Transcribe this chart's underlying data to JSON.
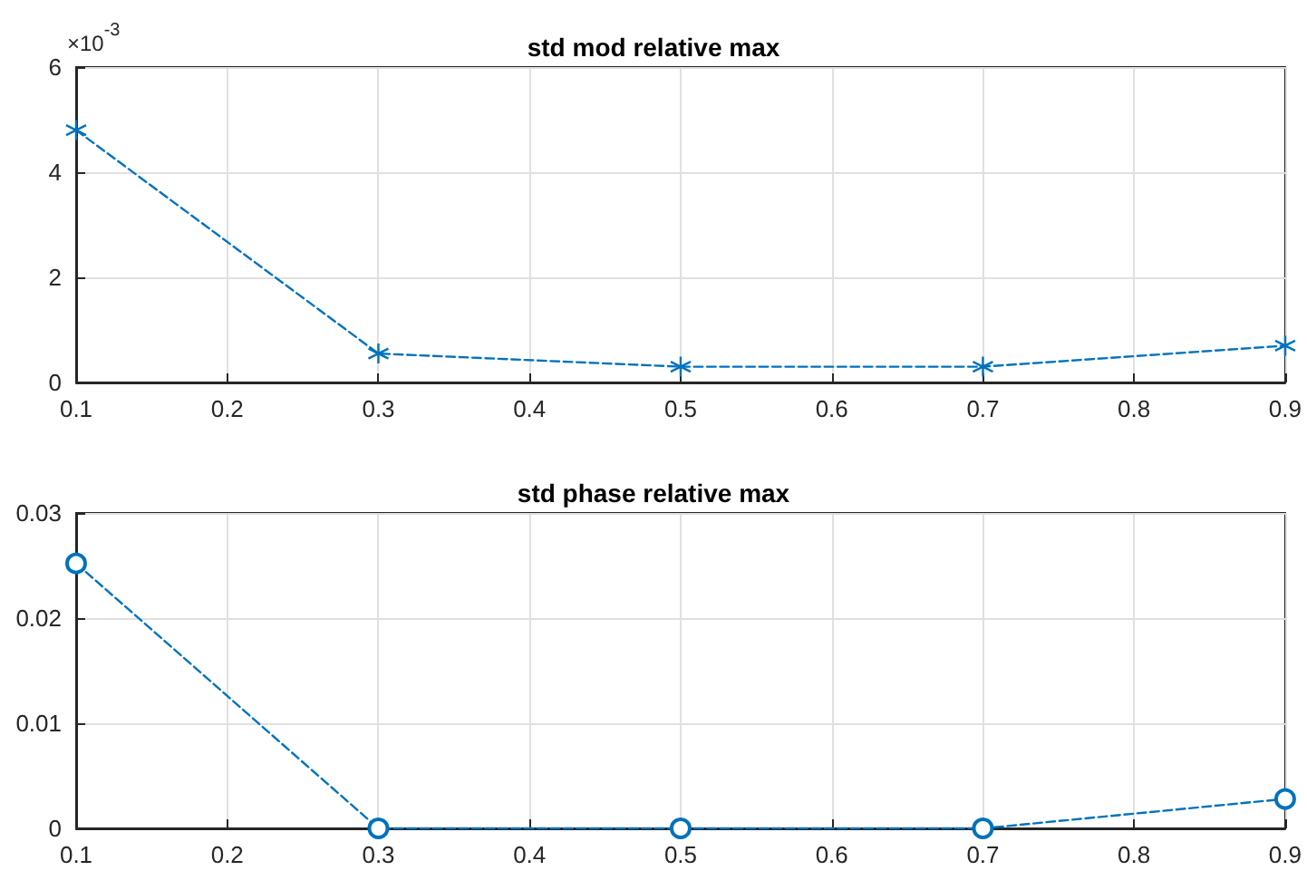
{
  "chart_data": [
    {
      "type": "line",
      "title": "std mod relative max",
      "x": [
        0.1,
        0.3,
        0.5,
        0.7,
        0.9
      ],
      "series": [
        {
          "color": "#0072bd",
          "values": [
            4.8,
            0.55,
            0.3,
            0.3,
            0.7
          ]
        }
      ],
      "xlim": [
        0.1,
        0.9
      ],
      "xticks": [
        0.1,
        0.2,
        0.3,
        0.4,
        0.5,
        0.6,
        0.7,
        0.8,
        0.9
      ],
      "ylim": [
        0,
        6
      ],
      "yticks": [
        0,
        2,
        4,
        6
      ],
      "annotations": [
        "×10$^{-3}$"
      ],
      "grid": true,
      "marker": "cross",
      "line_style": "dashed"
    },
    {
      "type": "line",
      "title": "std phase relative max",
      "x": [
        0.1,
        0.3,
        0.5,
        0.7,
        0.9
      ],
      "series": [
        {
          "color": "#0072bd",
          "values": [
            0.0252,
            0,
            0,
            0,
            0.0028
          ]
        }
      ],
      "xlim": [
        0.1,
        0.9
      ],
      "xticks": [
        0.1,
        0.2,
        0.3,
        0.4,
        0.5,
        0.6,
        0.7,
        0.8,
        0.9
      ],
      "ylim": [
        0,
        0.03
      ],
      "yticks": [
        0,
        0.01,
        0.02,
        0.03
      ],
      "grid": true,
      "marker": "circle",
      "line_style": "dashed"
    }
  ]
}
